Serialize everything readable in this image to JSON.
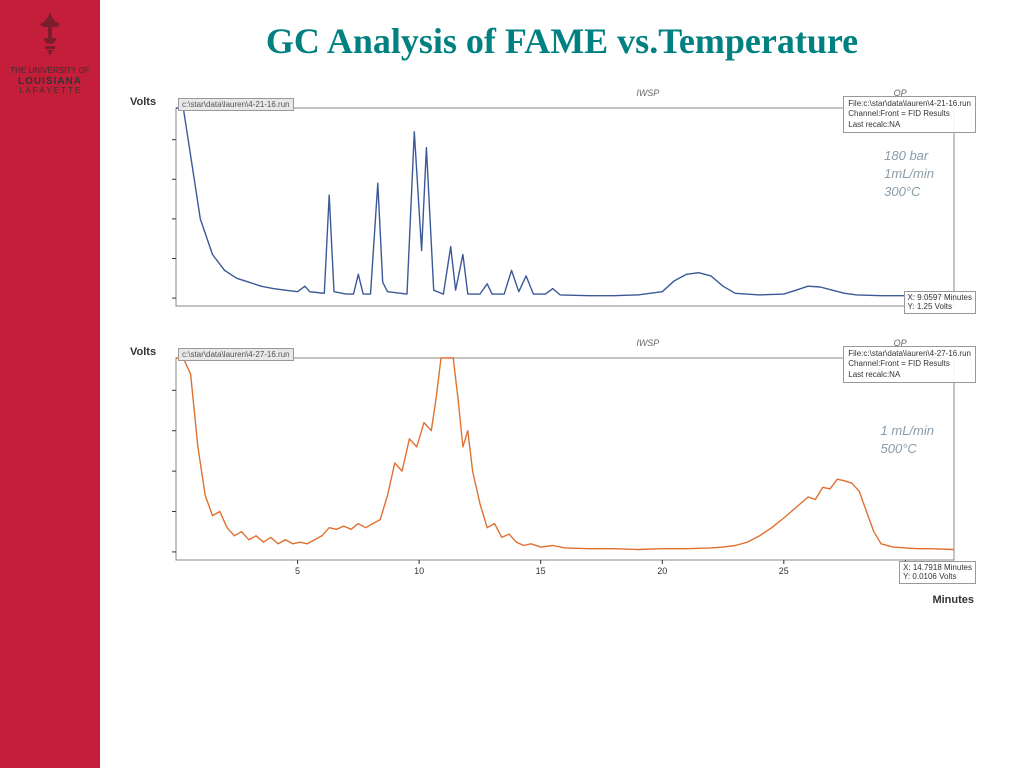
{
  "logo": {
    "line1": "THE UNIVERSITY OF",
    "line2": "LOUISIANA",
    "line3": "L A F A Y E T T E"
  },
  "title": {
    "text": "GC Analysis of FAME vs.Temperature",
    "fontsize": 36,
    "color": "#008080"
  },
  "sidebar_color": "#c41e3a",
  "xaxis_label": "Minutes",
  "xaxis": {
    "min": 0,
    "max": 32,
    "ticks": [
      5,
      10,
      15,
      20,
      25,
      30
    ]
  },
  "chart1": {
    "type": "line",
    "ylabel": "Volts",
    "file_tag": "c:\\star\\data\\lauren\\4-21-16.run",
    "top_mark_left": "IWSP",
    "top_mark_right": "OP",
    "info_box": [
      "File:c:\\star\\data\\lauren\\4-21-16.run",
      "Channel:Front = FID Results",
      "Last recalc:NA"
    ],
    "hand_note": [
      "180 bar",
      "1mL/min",
      "300°C"
    ],
    "coord_box": [
      "X: 9.0597 Minutes",
      "Y: 1.25 Volts"
    ],
    "line_color": "#3b5998",
    "background_color": "#ffffff",
    "border_color": "#888888",
    "ylim": [
      -0.1,
      2.4
    ],
    "yticks": [
      0.0,
      0.5,
      1.0,
      1.5,
      2.0
    ],
    "data": [
      [
        0.0,
        2.4
      ],
      [
        0.3,
        2.4
      ],
      [
        0.6,
        1.8
      ],
      [
        1.0,
        1.0
      ],
      [
        1.5,
        0.55
      ],
      [
        2.0,
        0.35
      ],
      [
        2.5,
        0.25
      ],
      [
        3.0,
        0.2
      ],
      [
        3.5,
        0.15
      ],
      [
        4.0,
        0.12
      ],
      [
        4.5,
        0.1
      ],
      [
        5.0,
        0.08
      ],
      [
        5.3,
        0.15
      ],
      [
        5.5,
        0.08
      ],
      [
        5.8,
        0.07
      ],
      [
        6.1,
        0.06
      ],
      [
        6.3,
        1.3
      ],
      [
        6.5,
        0.08
      ],
      [
        7.0,
        0.05
      ],
      [
        7.3,
        0.05
      ],
      [
        7.5,
        0.3
      ],
      [
        7.7,
        0.05
      ],
      [
        8.0,
        0.05
      ],
      [
        8.3,
        1.45
      ],
      [
        8.5,
        0.2
      ],
      [
        8.7,
        0.08
      ],
      [
        9.5,
        0.05
      ],
      [
        9.8,
        2.1
      ],
      [
        10.1,
        0.6
      ],
      [
        10.3,
        1.9
      ],
      [
        10.6,
        0.1
      ],
      [
        11.0,
        0.05
      ],
      [
        11.3,
        0.65
      ],
      [
        11.5,
        0.1
      ],
      [
        11.8,
        0.55
      ],
      [
        12.0,
        0.05
      ],
      [
        12.5,
        0.05
      ],
      [
        12.8,
        0.18
      ],
      [
        13.0,
        0.05
      ],
      [
        13.5,
        0.05
      ],
      [
        13.8,
        0.35
      ],
      [
        14.1,
        0.08
      ],
      [
        14.4,
        0.28
      ],
      [
        14.7,
        0.05
      ],
      [
        15.2,
        0.05
      ],
      [
        15.5,
        0.12
      ],
      [
        15.8,
        0.04
      ],
      [
        17.0,
        0.03
      ],
      [
        18.0,
        0.03
      ],
      [
        19.0,
        0.04
      ],
      [
        20.0,
        0.08
      ],
      [
        20.5,
        0.22
      ],
      [
        21.0,
        0.3
      ],
      [
        21.5,
        0.32
      ],
      [
        22.0,
        0.28
      ],
      [
        22.5,
        0.15
      ],
      [
        23.0,
        0.06
      ],
      [
        24.0,
        0.04
      ],
      [
        25.0,
        0.05
      ],
      [
        25.5,
        0.1
      ],
      [
        26.0,
        0.15
      ],
      [
        26.5,
        0.14
      ],
      [
        27.0,
        0.1
      ],
      [
        27.5,
        0.06
      ],
      [
        28.0,
        0.04
      ],
      [
        29.0,
        0.03
      ],
      [
        30.0,
        0.03
      ],
      [
        31.0,
        0.02
      ],
      [
        32.0,
        0.02
      ]
    ]
  },
  "chart2": {
    "type": "line",
    "ylabel": "Volts",
    "file_tag": "c:\\star\\data\\lauren\\4-27-16.run",
    "top_mark_left": "IWSP",
    "top_mark_right": "OP",
    "info_box": [
      "File:c:\\star\\data\\lauren\\4-27-16.run",
      "Channel:Front = FID Results",
      "Last recalc:NA"
    ],
    "hand_note": [
      "1 mL/min",
      "500°C"
    ],
    "coord_box": [
      "X: 14.7918 Minutes",
      "Y: 0.0106 Volts"
    ],
    "line_color": "#e07030",
    "background_color": "#ffffff",
    "border_color": "#888888",
    "ylim": [
      -0.1,
      2.4
    ],
    "yticks": [
      0.0,
      0.5,
      1.0,
      1.5,
      2.0
    ],
    "data": [
      [
        0.0,
        2.4
      ],
      [
        0.3,
        2.4
      ],
      [
        0.6,
        2.2
      ],
      [
        0.9,
        1.3
      ],
      [
        1.2,
        0.7
      ],
      [
        1.5,
        0.45
      ],
      [
        1.8,
        0.5
      ],
      [
        2.1,
        0.3
      ],
      [
        2.4,
        0.2
      ],
      [
        2.7,
        0.25
      ],
      [
        3.0,
        0.15
      ],
      [
        3.3,
        0.2
      ],
      [
        3.6,
        0.12
      ],
      [
        3.9,
        0.18
      ],
      [
        4.2,
        0.1
      ],
      [
        4.5,
        0.15
      ],
      [
        4.8,
        0.1
      ],
      [
        5.1,
        0.12
      ],
      [
        5.4,
        0.1
      ],
      [
        5.7,
        0.15
      ],
      [
        6.0,
        0.2
      ],
      [
        6.3,
        0.3
      ],
      [
        6.6,
        0.28
      ],
      [
        6.9,
        0.32
      ],
      [
        7.2,
        0.28
      ],
      [
        7.5,
        0.35
      ],
      [
        7.8,
        0.3
      ],
      [
        8.1,
        0.35
      ],
      [
        8.4,
        0.4
      ],
      [
        8.7,
        0.7
      ],
      [
        9.0,
        1.1
      ],
      [
        9.3,
        1.0
      ],
      [
        9.6,
        1.4
      ],
      [
        9.9,
        1.3
      ],
      [
        10.2,
        1.6
      ],
      [
        10.5,
        1.5
      ],
      [
        10.7,
        1.9
      ],
      [
        10.9,
        2.4
      ],
      [
        11.1,
        2.4
      ],
      [
        11.4,
        2.4
      ],
      [
        11.6,
        1.9
      ],
      [
        11.8,
        1.3
      ],
      [
        12.0,
        1.5
      ],
      [
        12.2,
        1.0
      ],
      [
        12.5,
        0.6
      ],
      [
        12.8,
        0.3
      ],
      [
        13.1,
        0.35
      ],
      [
        13.4,
        0.18
      ],
      [
        13.7,
        0.22
      ],
      [
        14.0,
        0.12
      ],
      [
        14.3,
        0.08
      ],
      [
        14.6,
        0.1
      ],
      [
        15.0,
        0.06
      ],
      [
        15.5,
        0.08
      ],
      [
        16.0,
        0.05
      ],
      [
        17.0,
        0.04
      ],
      [
        18.0,
        0.04
      ],
      [
        19.0,
        0.03
      ],
      [
        20.0,
        0.04
      ],
      [
        21.0,
        0.04
      ],
      [
        22.0,
        0.05
      ],
      [
        22.5,
        0.06
      ],
      [
        23.0,
        0.08
      ],
      [
        23.5,
        0.12
      ],
      [
        24.0,
        0.2
      ],
      [
        24.5,
        0.3
      ],
      [
        25.0,
        0.42
      ],
      [
        25.5,
        0.55
      ],
      [
        26.0,
        0.68
      ],
      [
        26.3,
        0.65
      ],
      [
        26.6,
        0.8
      ],
      [
        26.9,
        0.78
      ],
      [
        27.2,
        0.9
      ],
      [
        27.5,
        0.88
      ],
      [
        27.8,
        0.85
      ],
      [
        28.1,
        0.75
      ],
      [
        28.4,
        0.5
      ],
      [
        28.7,
        0.25
      ],
      [
        29.0,
        0.1
      ],
      [
        29.5,
        0.06
      ],
      [
        30.0,
        0.05
      ],
      [
        30.5,
        0.04
      ],
      [
        31.0,
        0.04
      ],
      [
        32.0,
        0.03
      ]
    ]
  }
}
